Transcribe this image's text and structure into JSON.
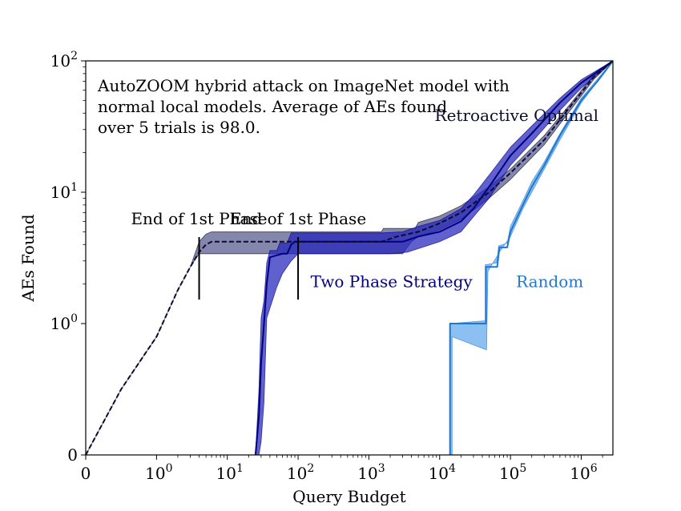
{
  "chart_data": {
    "type": "line",
    "title": "",
    "xlabel": "Query Budget",
    "ylabel": "AEs Found",
    "x_scale": "symlog",
    "y_scale": "symlog",
    "xlim": [
      0,
      2800000
    ],
    "ylim": [
      0,
      100
    ],
    "x_ticks": [
      {
        "value": 0,
        "base": "0",
        "exp": ""
      },
      {
        "value": 1,
        "base": "10",
        "exp": "0"
      },
      {
        "value": 10,
        "base": "10",
        "exp": "1"
      },
      {
        "value": 100,
        "base": "10",
        "exp": "2"
      },
      {
        "value": 1000,
        "base": "10",
        "exp": "3"
      },
      {
        "value": 10000,
        "base": "10",
        "exp": "4"
      },
      {
        "value": 100000,
        "base": "10",
        "exp": "5"
      },
      {
        "value": 1000000,
        "base": "10",
        "exp": "6"
      }
    ],
    "y_ticks": [
      {
        "value": 0,
        "base": "0",
        "exp": ""
      },
      {
        "value": 1,
        "base": "10",
        "exp": "0"
      },
      {
        "value": 10,
        "base": "10",
        "exp": "1"
      },
      {
        "value": 100,
        "base": "10",
        "exp": "2"
      }
    ],
    "annotation_lines": [
      "AutoZOOM hybrid attack on ImageNet model with",
      "normal local models. Average of AEs found",
      "over 5 trials is 98.0."
    ],
    "phase_markers": [
      {
        "x": 4,
        "label": "End of 1st Phase"
      },
      {
        "x": 100,
        "label": "End of 1st Phase"
      }
    ],
    "series": [
      {
        "name": "Retroactive Optimal",
        "style": "dashed",
        "color": "#0b0b2e",
        "band_color": "#3a3b78",
        "points": [
          [
            0,
            0
          ],
          [
            0.5,
            0.5
          ],
          [
            1,
            0.9
          ],
          [
            2,
            1.8
          ],
          [
            3,
            2.7
          ],
          [
            4,
            3.5
          ],
          [
            5,
            4.0
          ],
          [
            6,
            4.2
          ],
          [
            50,
            4.2
          ],
          [
            1500,
            4.2
          ],
          [
            2500,
            4.6
          ],
          [
            5000,
            5.0
          ],
          [
            10000,
            5.8
          ],
          [
            20000,
            7.0
          ],
          [
            50000,
            10
          ],
          [
            100000,
            14
          ],
          [
            300000,
            25
          ],
          [
            700000,
            45
          ],
          [
            1500000,
            75
          ],
          [
            2800000,
            100
          ]
        ],
        "band_upper": [
          [
            0,
            0
          ],
          [
            0.5,
            0.5
          ],
          [
            1,
            0.9
          ],
          [
            2,
            1.8
          ],
          [
            3,
            2.7
          ],
          [
            4,
            4.2
          ],
          [
            5,
            4.8
          ],
          [
            6,
            5.0
          ],
          [
            1500,
            5.0
          ],
          [
            1600,
            5.3
          ],
          [
            4500,
            5.3
          ],
          [
            5000,
            5.9
          ],
          [
            10000,
            6.6
          ],
          [
            20000,
            7.9
          ],
          [
            50000,
            11
          ],
          [
            100000,
            15
          ],
          [
            300000,
            27
          ],
          [
            700000,
            47
          ],
          [
            1500000,
            78
          ],
          [
            2800000,
            100
          ]
        ],
        "band_lower": [
          [
            2800000,
            100
          ],
          [
            1500000,
            72
          ],
          [
            700000,
            42
          ],
          [
            300000,
            23
          ],
          [
            100000,
            12.5
          ],
          [
            50000,
            9
          ],
          [
            20000,
            6.2
          ],
          [
            10000,
            5.2
          ],
          [
            5000,
            4.6
          ],
          [
            4000,
            4.2
          ],
          [
            3000,
            3.4
          ],
          [
            4,
            3.4
          ],
          [
            3,
            2.7
          ],
          [
            2,
            1.8
          ],
          [
            1,
            0.9
          ],
          [
            0.5,
            0.5
          ],
          [
            0,
            0
          ]
        ],
        "label_anchor": [
          8500,
          35
        ]
      },
      {
        "name": "Two Phase Strategy",
        "style": "solid",
        "color": "#000080",
        "band_color": "#2222bb",
        "points": [
          [
            25,
            0
          ],
          [
            28,
            0.3
          ],
          [
            30,
            0.7
          ],
          [
            33,
            1.0
          ],
          [
            36,
            2.0
          ],
          [
            40,
            3.2
          ],
          [
            60,
            3.4
          ],
          [
            70,
            3.4
          ],
          [
            80,
            4.0
          ],
          [
            90,
            4.2
          ],
          [
            3000,
            4.2
          ],
          [
            5000,
            4.6
          ],
          [
            10000,
            5.0
          ],
          [
            20000,
            6.0
          ],
          [
            30000,
            7.5
          ],
          [
            50000,
            11
          ],
          [
            100000,
            19
          ],
          [
            200000,
            28
          ],
          [
            500000,
            48
          ],
          [
            1000000,
            68
          ],
          [
            2800000,
            100
          ]
        ],
        "band_upper": [
          [
            25,
            0
          ],
          [
            28,
            0.5
          ],
          [
            30,
            1.1
          ],
          [
            33,
            1.5
          ],
          [
            36,
            2.9
          ],
          [
            40,
            3.6
          ],
          [
            50,
            3.6
          ],
          [
            55,
            4.1
          ],
          [
            70,
            4.1
          ],
          [
            80,
            4.9
          ],
          [
            1500,
            4.9
          ],
          [
            3000,
            5.0
          ],
          [
            5000,
            5.5
          ],
          [
            10000,
            6.1
          ],
          [
            20000,
            7.5
          ],
          [
            30000,
            9.5
          ],
          [
            50000,
            13.5
          ],
          [
            100000,
            22
          ],
          [
            200000,
            32
          ],
          [
            500000,
            52
          ],
          [
            1000000,
            72
          ],
          [
            2800000,
            100
          ]
        ],
        "band_lower": [
          [
            2800000,
            100
          ],
          [
            1000000,
            62
          ],
          [
            500000,
            42
          ],
          [
            200000,
            24
          ],
          [
            100000,
            16
          ],
          [
            50000,
            9
          ],
          [
            30000,
            6.5
          ],
          [
            20000,
            5.0
          ],
          [
            10000,
            4.2
          ],
          [
            3500,
            3.5
          ],
          [
            2000,
            3.4
          ],
          [
            100,
            3.4
          ],
          [
            80,
            3.0
          ],
          [
            60,
            2.4
          ],
          [
            50,
            1.9
          ],
          [
            36,
            1.1
          ],
          [
            33,
            0.4
          ],
          [
            30,
            0.1
          ],
          [
            28,
            0
          ],
          [
            25,
            0
          ]
        ],
        "label_anchor": [
          150,
          1.9
        ]
      },
      {
        "name": "Random",
        "style": "solid",
        "color": "#1f77d4",
        "band_color": "#5fa8ee",
        "points": [
          [
            14000,
            0
          ],
          [
            14000,
            1.0
          ],
          [
            45000,
            1.0
          ],
          [
            45000,
            2.7
          ],
          [
            65000,
            2.7
          ],
          [
            70000,
            3.8
          ],
          [
            90000,
            3.8
          ],
          [
            100000,
            5
          ],
          [
            150000,
            8
          ],
          [
            200000,
            11
          ],
          [
            300000,
            16
          ],
          [
            500000,
            27
          ],
          [
            1000000,
            50
          ],
          [
            1700000,
            70
          ],
          [
            2800000,
            100
          ]
        ],
        "band_upper": [
          [
            14000,
            0
          ],
          [
            14000,
            1.0
          ],
          [
            44000,
            1.05
          ],
          [
            44000,
            2.8
          ],
          [
            64000,
            2.9
          ],
          [
            68000,
            3.9
          ],
          [
            90000,
            4.1
          ],
          [
            100000,
            5.5
          ],
          [
            150000,
            8.6
          ],
          [
            200000,
            12
          ],
          [
            300000,
            17
          ],
          [
            500000,
            28
          ],
          [
            1000000,
            52
          ],
          [
            2800000,
            100
          ]
        ],
        "band_lower": [
          [
            2800000,
            100
          ],
          [
            1000000,
            48
          ],
          [
            500000,
            25
          ],
          [
            300000,
            15
          ],
          [
            200000,
            10
          ],
          [
            150000,
            7.5
          ],
          [
            100000,
            4.6
          ],
          [
            70000,
            3.5
          ],
          [
            48000,
            2.5
          ],
          [
            46000,
            0.8
          ],
          [
            15000,
            0.9
          ],
          [
            15000,
            0
          ]
        ],
        "label_anchor": [
          120000,
          1.9
        ]
      }
    ]
  }
}
